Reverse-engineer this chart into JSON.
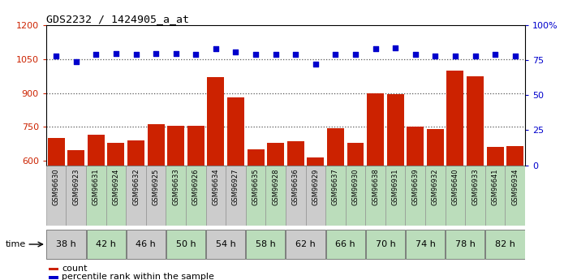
{
  "title": "GDS2232 / 1424905_a_at",
  "samples": [
    "GSM96630",
    "GSM96923",
    "GSM96631",
    "GSM96924",
    "GSM96632",
    "GSM96925",
    "GSM96633",
    "GSM96926",
    "GSM96634",
    "GSM96927",
    "GSM96635",
    "GSM96928",
    "GSM96636",
    "GSM96929",
    "GSM96637",
    "GSM96930",
    "GSM96638",
    "GSM96931",
    "GSM96639",
    "GSM96932",
    "GSM96640",
    "GSM96933",
    "GSM96641",
    "GSM96934"
  ],
  "counts": [
    700,
    645,
    715,
    680,
    690,
    760,
    755,
    755,
    970,
    880,
    650,
    680,
    685,
    615,
    745,
    680,
    900,
    895,
    750,
    740,
    1000,
    975,
    660,
    665
  ],
  "percentiles": [
    78,
    74,
    79,
    80,
    79,
    80,
    80,
    79,
    83,
    81,
    79,
    79,
    79,
    72,
    79,
    79,
    83,
    84,
    79,
    78,
    78,
    78,
    79,
    78
  ],
  "time_groups": [
    "38 h",
    "42 h",
    "46 h",
    "50 h",
    "54 h",
    "58 h",
    "62 h",
    "66 h",
    "70 h",
    "74 h",
    "78 h",
    "82 h"
  ],
  "time_group_colors": [
    "#cccccc",
    "#bbddbb",
    "#cccccc",
    "#bbddbb",
    "#cccccc",
    "#bbddbb",
    "#cccccc",
    "#bbddbb",
    "#bbddbb",
    "#bbddbb",
    "#bbddbb",
    "#bbddbb"
  ],
  "sample_bg_colors": [
    "#cccccc",
    "#cccccc",
    "#bbddbb",
    "#bbddbb",
    "#cccccc",
    "#cccccc",
    "#bbddbb",
    "#bbddbb",
    "#cccccc",
    "#cccccc",
    "#bbddbb",
    "#bbddbb",
    "#cccccc",
    "#cccccc",
    "#bbddbb",
    "#bbddbb",
    "#bbddbb",
    "#bbddbb",
    "#bbddbb",
    "#bbddbb",
    "#bbddbb",
    "#bbddbb",
    "#bbddbb",
    "#bbddbb"
  ],
  "ylim_left": [
    580,
    1200
  ],
  "ylim_right": [
    0,
    100
  ],
  "yticks_left": [
    600,
    750,
    900,
    1050,
    1200
  ],
  "yticks_right": [
    0,
    25,
    50,
    75,
    100
  ],
  "bar_color": "#cc2200",
  "dot_color": "#0000cc",
  "bg_color": "#ffffff",
  "plot_bg_color": "#ffffff",
  "dotted_line_color": "#555555",
  "legend_count_label": "count",
  "legend_pct_label": "percentile rank within the sample",
  "time_label": "time"
}
